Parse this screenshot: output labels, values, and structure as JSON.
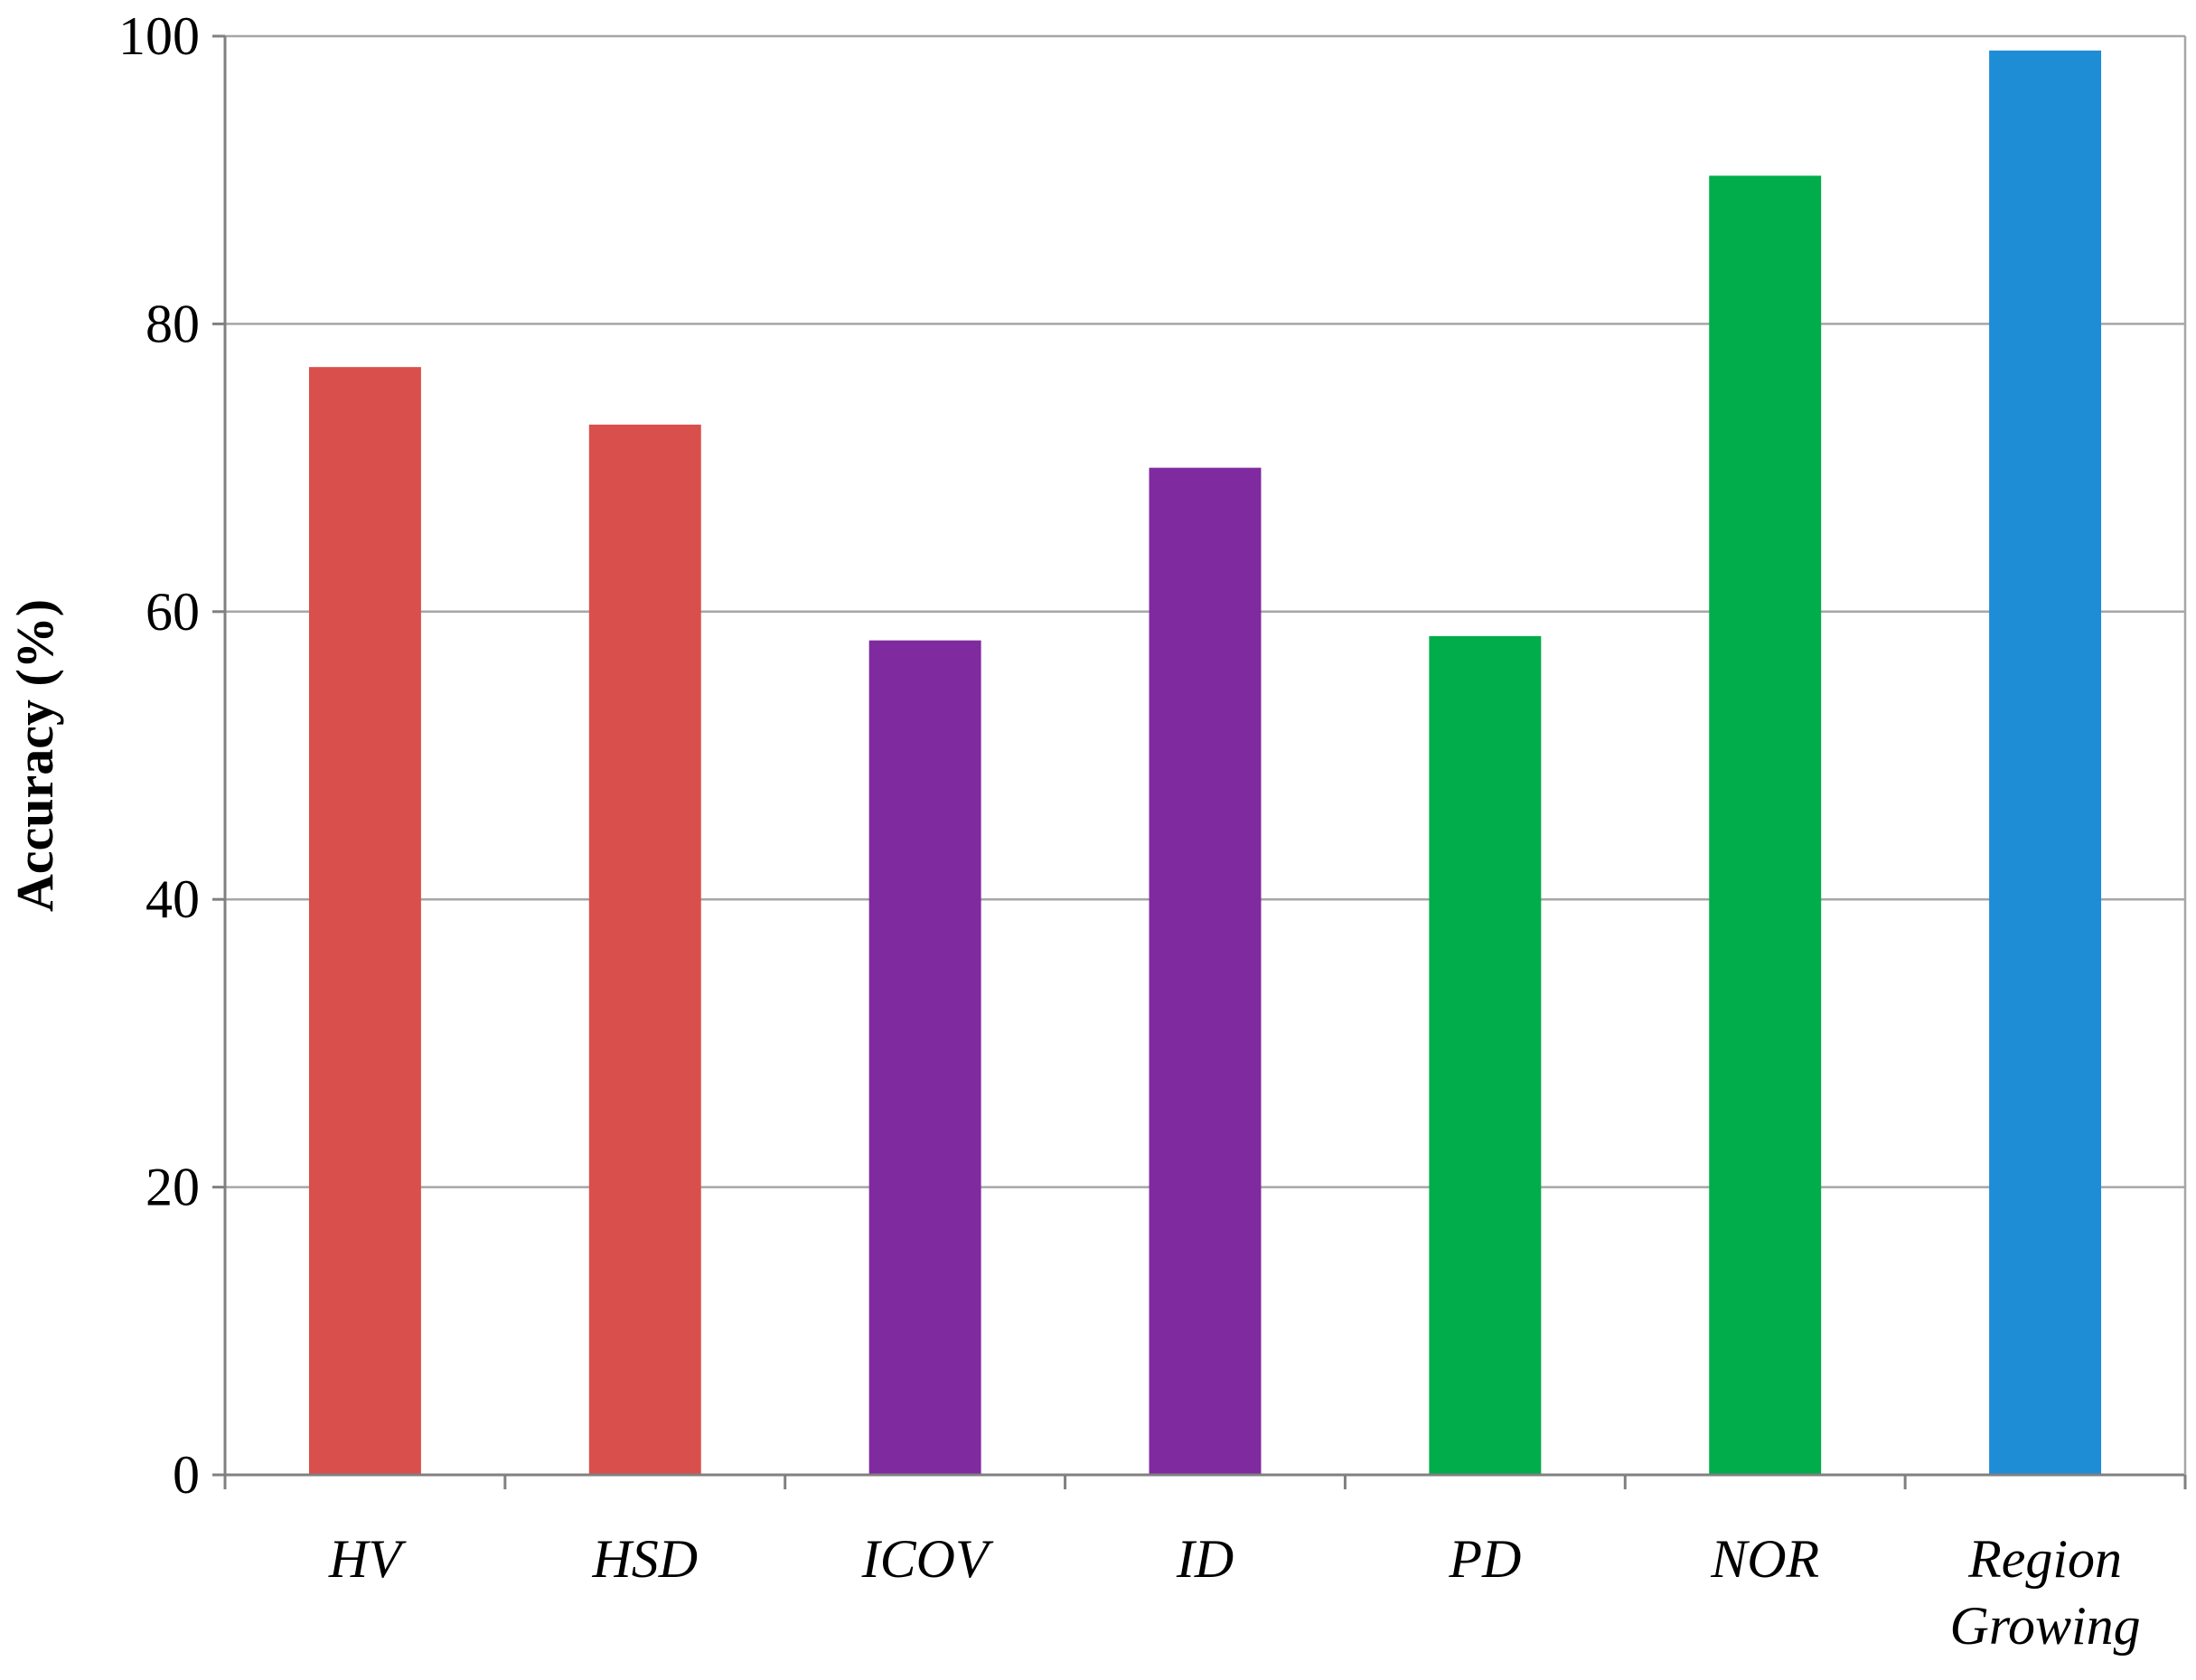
{
  "chart_data": {
    "type": "bar",
    "title": "",
    "xlabel": "",
    "ylabel": "Accuracy (%)",
    "ylim": [
      0,
      100
    ],
    "yticks": [
      "0",
      "20",
      "40",
      "60",
      "80",
      "100"
    ],
    "grid": true,
    "categories": [
      [
        "HV"
      ],
      [
        "HSD"
      ],
      [
        "ICOV"
      ],
      [
        "ID"
      ],
      [
        "PD"
      ],
      [
        "NOR"
      ],
      [
        "Region",
        "Growing"
      ]
    ],
    "values": [
      77,
      73,
      58,
      70,
      58.3,
      90.3,
      99
    ],
    "bar_colors": [
      "#d94f4c",
      "#d94f4c",
      "#7f2a9e",
      "#7f2a9e",
      "#00ad4a",
      "#00ad4a",
      "#1f8cd6"
    ]
  }
}
